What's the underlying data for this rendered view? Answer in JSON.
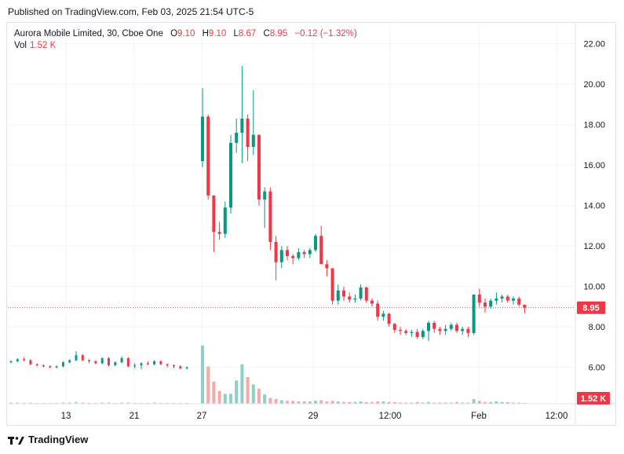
{
  "published": "Published on TradingView.com, Feb 03, 2025 21:54 UTC-5",
  "footer_brand": "TradingView",
  "legend": {
    "symbol": "Aurora Mobile Limited, 30, Cboe One",
    "o_label": "O",
    "o_value": "9.10",
    "h_label": "H",
    "h_value": "9.10",
    "l_label": "L",
    "l_value": "8.67",
    "c_label": "C",
    "c_value": "8.95",
    "change": "−0.12 (−1.32%)",
    "vol_label": "Vol",
    "vol_value": "1.52 K"
  },
  "chart_data": {
    "type": "candlestick",
    "ylim": [
      4.2,
      23.0
    ],
    "y_ticks": [
      "22.00",
      "20.00",
      "18.00",
      "16.00",
      "14.00",
      "12.00",
      "10.00",
      "8.00",
      "6.00"
    ],
    "x_ticks": [
      "13",
      "21",
      "27",
      "29",
      "12:00",
      "Feb",
      "12:00"
    ],
    "last_price_label": "8.95",
    "last_volume_label": "1.52 K",
    "colors": {
      "up": "#089981",
      "down": "#f23645",
      "up_vol": "#8fd0c6",
      "down_vol": "#f7a9a7",
      "grid": "#f0f3fa",
      "axis_text": "#131722"
    },
    "segment1_candles": [
      [
        6.25,
        6.35,
        6.2,
        6.3
      ],
      [
        6.3,
        6.45,
        6.25,
        6.4
      ],
      [
        6.4,
        6.5,
        6.3,
        6.35
      ],
      [
        6.35,
        6.4,
        6.1,
        6.15
      ],
      [
        6.15,
        6.2,
        6.05,
        6.1
      ],
      [
        6.1,
        6.15,
        6.0,
        6.05
      ],
      [
        6.05,
        6.1,
        5.95,
        6.0
      ],
      [
        6.0,
        6.1,
        5.95,
        6.05
      ],
      [
        6.05,
        6.3,
        6.0,
        6.25
      ],
      [
        6.25,
        6.4,
        6.2,
        6.35
      ],
      [
        6.35,
        6.8,
        6.3,
        6.6
      ],
      [
        6.6,
        6.65,
        6.3,
        6.35
      ],
      [
        6.35,
        6.4,
        6.2,
        6.3
      ],
      [
        6.3,
        6.35,
        6.15,
        6.2
      ],
      [
        6.2,
        6.5,
        6.15,
        6.45
      ],
      [
        6.45,
        6.5,
        6.05,
        6.1
      ],
      [
        6.1,
        6.3,
        6.05,
        6.25
      ],
      [
        6.25,
        6.55,
        6.2,
        6.45
      ],
      [
        6.45,
        6.5,
        6.0,
        6.05
      ],
      [
        6.05,
        6.2,
        5.95,
        6.1
      ],
      [
        6.1,
        6.25,
        5.9,
        6.2
      ],
      [
        6.2,
        6.3,
        6.1,
        6.15
      ],
      [
        6.15,
        6.35,
        6.1,
        6.3
      ],
      [
        6.3,
        6.35,
        6.1,
        6.15
      ],
      [
        6.15,
        6.2,
        6.0,
        6.1
      ],
      [
        6.1,
        6.15,
        5.95,
        6.05
      ],
      [
        6.05,
        6.1,
        5.9,
        5.95
      ],
      [
        5.95,
        6.05,
        5.9,
        6.0
      ]
    ],
    "segment2_candles": [
      [
        16.2,
        19.8,
        15.9,
        18.4
      ],
      [
        18.4,
        18.5,
        14.3,
        14.5
      ],
      [
        14.5,
        14.5,
        11.7,
        12.7
      ],
      [
        12.7,
        13.2,
        12.3,
        12.6
      ],
      [
        12.6,
        14.2,
        12.4,
        13.9
      ],
      [
        13.9,
        17.5,
        13.6,
        17.1
      ],
      [
        17.1,
        18.3,
        16.6,
        17.6
      ],
      [
        17.6,
        20.9,
        16.1,
        18.3
      ],
      [
        18.3,
        18.5,
        16.2,
        16.9
      ],
      [
        16.9,
        19.7,
        16.5,
        17.5
      ],
      [
        17.5,
        16.7,
        14.0,
        14.3
      ],
      [
        14.3,
        14.9,
        12.9,
        14.7
      ],
      [
        14.7,
        14.9,
        11.8,
        12.2
      ],
      [
        12.2,
        12.5,
        10.3,
        11.2
      ],
      [
        11.2,
        12.0,
        10.9,
        11.8
      ],
      [
        11.8,
        12.0,
        11.3,
        11.5
      ],
      [
        11.5,
        11.6,
        11.1,
        11.4
      ],
      [
        11.4,
        11.9,
        11.3,
        11.7
      ],
      [
        11.7,
        11.8,
        11.4,
        11.6
      ],
      [
        11.6,
        11.9,
        11.4,
        11.8
      ],
      [
        11.8,
        12.6,
        11.7,
        12.5
      ],
      [
        12.5,
        13.0,
        11.1,
        11.1
      ],
      [
        11.1,
        11.3,
        10.5,
        10.9
      ],
      [
        10.9,
        10.9,
        9.1,
        9.3
      ],
      [
        9.3,
        10.1,
        9.1,
        9.8
      ],
      [
        9.8,
        10.0,
        9.3,
        9.5
      ],
      [
        9.5,
        9.7,
        9.2,
        9.35
      ],
      [
        9.35,
        9.6,
        9.2,
        9.4
      ],
      [
        9.4,
        10.1,
        9.3,
        9.95
      ],
      [
        9.95,
        10.0,
        9.2,
        9.3
      ],
      [
        9.3,
        9.4,
        9.0,
        9.15
      ],
      [
        9.15,
        9.3,
        8.3,
        8.5
      ],
      [
        8.5,
        8.8,
        8.3,
        8.65
      ],
      [
        8.65,
        8.7,
        8.0,
        8.15
      ],
      [
        8.15,
        8.2,
        7.7,
        7.85
      ],
      [
        7.85,
        8.0,
        7.6,
        7.8
      ],
      [
        7.8,
        7.9,
        7.6,
        7.7
      ],
      [
        7.7,
        7.85,
        7.5,
        7.75
      ],
      [
        7.75,
        7.9,
        7.4,
        7.5
      ],
      [
        7.5,
        7.9,
        7.4,
        7.8
      ],
      [
        7.8,
        8.3,
        7.3,
        8.2
      ],
      [
        8.2,
        8.3,
        7.7,
        7.9
      ],
      [
        7.9,
        8.0,
        7.6,
        7.8
      ],
      [
        7.8,
        8.1,
        7.6,
        7.9
      ],
      [
        7.9,
        8.2,
        7.8,
        8.1
      ],
      [
        8.1,
        8.2,
        7.7,
        7.8
      ],
      [
        7.8,
        8.0,
        7.6,
        7.9
      ],
      [
        7.9,
        8.0,
        7.5,
        7.7
      ],
      [
        7.7,
        9.6,
        7.6,
        9.6
      ],
      [
        9.6,
        9.9,
        9.0,
        9.2
      ],
      [
        9.2,
        9.4,
        8.7,
        9.0
      ],
      [
        9.0,
        9.4,
        8.9,
        9.3
      ],
      [
        9.3,
        9.7,
        9.1,
        9.4
      ],
      [
        9.4,
        9.6,
        9.2,
        9.5
      ],
      [
        9.5,
        9.6,
        9.2,
        9.3
      ],
      [
        9.3,
        9.5,
        9.1,
        9.4
      ],
      [
        9.4,
        9.5,
        9.0,
        9.1
      ],
      [
        9.1,
        9.1,
        8.67,
        8.95
      ]
    ],
    "volumes_segment1_pct": [
      2,
      2,
      1,
      2,
      1,
      1,
      1,
      1,
      2,
      2,
      3,
      2,
      1,
      1,
      2,
      2,
      1,
      2,
      2,
      1,
      1,
      1,
      2,
      1,
      1,
      1,
      1,
      1
    ],
    "volumes_segment2_pct": [
      100,
      64,
      38,
      22,
      17,
      17,
      40,
      68,
      46,
      33,
      26,
      16,
      10,
      8,
      6,
      5,
      5,
      4,
      4,
      4,
      5,
      6,
      4,
      5,
      4,
      3,
      3,
      3,
      4,
      3,
      3,
      4,
      4,
      3,
      3,
      2,
      2,
      2,
      3,
      2,
      3,
      2,
      2,
      2,
      2,
      3,
      2,
      2,
      8,
      5,
      3,
      3,
      4,
      3,
      3,
      2,
      2,
      1
    ]
  }
}
